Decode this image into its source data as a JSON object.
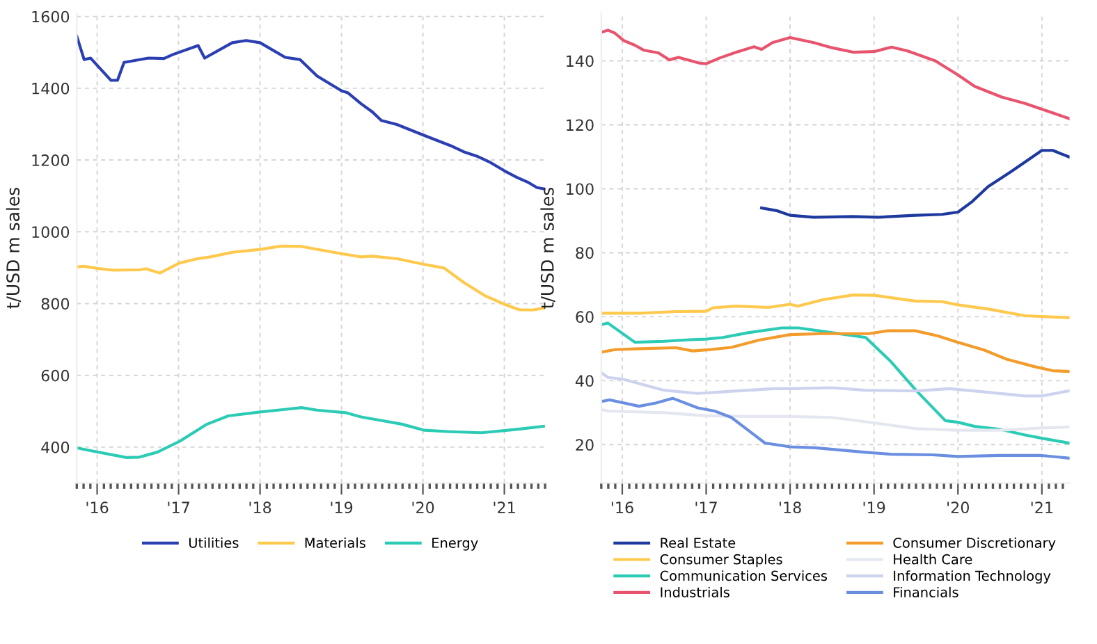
{
  "chart_data": [
    {
      "type": "line",
      "ylabel": "t/USD m sales",
      "xlim": [
        2015.75,
        2021.5
      ],
      "ylim": [
        300,
        1610
      ],
      "xticks": [
        {
          "value": 2016,
          "label": "'16"
        },
        {
          "value": 2017,
          "label": "'17"
        },
        {
          "value": 2018,
          "label": "'18"
        },
        {
          "value": 2019,
          "label": "'19"
        },
        {
          "value": 2020,
          "label": "'20"
        },
        {
          "value": 2021,
          "label": "'21"
        }
      ],
      "yticks": [
        400,
        600,
        800,
        1000,
        1200,
        1400,
        1600
      ],
      "grid": true,
      "legend": "bottom",
      "line_style": "solid",
      "marker": "none",
      "series": [
        {
          "name": "Utilities",
          "color": "#2b3fb3",
          "x": [
            2015.75,
            2015.84,
            2015.92,
            2016.17,
            2016.25,
            2016.33,
            2016.63,
            2016.82,
            2016.93,
            2017.24,
            2017.32,
            2017.66,
            2017.83,
            2018.0,
            2018.31,
            2018.49,
            2018.7,
            2019.0,
            2019.08,
            2019.24,
            2019.38,
            2019.49,
            2019.68,
            2020.0,
            2020.17,
            2020.34,
            2020.5,
            2020.66,
            2020.83,
            2021.0,
            2021.15,
            2021.29,
            2021.4,
            2021.48
          ],
          "values": [
            1545,
            1480,
            1484,
            1422,
            1422,
            1472,
            1484,
            1483,
            1494,
            1519,
            1484,
            1527,
            1533,
            1527,
            1486,
            1480,
            1434,
            1393,
            1387,
            1357,
            1334,
            1310,
            1299,
            1270,
            1255,
            1240,
            1223,
            1211,
            1193,
            1170,
            1152,
            1138,
            1123,
            1120
          ]
        },
        {
          "name": "Materials",
          "color": "#ffc94d",
          "x": [
            2015.75,
            2015.84,
            2016.0,
            2016.19,
            2016.52,
            2016.6,
            2016.77,
            2017.01,
            2017.23,
            2017.39,
            2017.66,
            2018.0,
            2018.26,
            2018.51,
            2019.0,
            2019.24,
            2019.38,
            2019.68,
            2020.0,
            2020.26,
            2020.5,
            2020.77,
            2021.0,
            2021.18,
            2021.34,
            2021.48
          ],
          "values": [
            902,
            904,
            898,
            893,
            894,
            897,
            885,
            913,
            925,
            930,
            943,
            951,
            960,
            959,
            939,
            930,
            932,
            925,
            910,
            899,
            859,
            821,
            798,
            783,
            782,
            787
          ]
        },
        {
          "name": "Energy",
          "color": "#2ccbb5",
          "x": [
            2015.75,
            2015.92,
            2016.36,
            2016.52,
            2016.74,
            2017.01,
            2017.34,
            2017.61,
            2018.0,
            2018.26,
            2018.51,
            2018.7,
            2019.05,
            2019.24,
            2019.52,
            2019.74,
            2020.02,
            2020.34,
            2020.72,
            2021.0,
            2021.21,
            2021.48
          ],
          "values": [
            398,
            390,
            371,
            372,
            386,
            416,
            463,
            487,
            498,
            504,
            510,
            503,
            496,
            484,
            473,
            464,
            447,
            443,
            440,
            446,
            451,
            458
          ]
        }
      ]
    },
    {
      "type": "line",
      "ylabel": "t/USD m sales",
      "xlim": [
        2015.75,
        2021.33
      ],
      "ylim": [
        8,
        155
      ],
      "xticks": [
        {
          "value": 2016,
          "label": "'16"
        },
        {
          "value": 2017,
          "label": "'17"
        },
        {
          "value": 2018,
          "label": "'18"
        },
        {
          "value": 2019,
          "label": "'19"
        },
        {
          "value": 2020,
          "label": "'20"
        },
        {
          "value": 2021,
          "label": "'21"
        }
      ],
      "yticks": [
        20,
        40,
        60,
        80,
        100,
        120,
        140
      ],
      "grid": true,
      "legend": "bottom",
      "line_style": "solid",
      "marker": "none",
      "series": [
        {
          "name": "Real Estate",
          "color": "#1e3a9e",
          "x": [
            2017.66,
            2017.85,
            2018.0,
            2018.28,
            2018.75,
            2019.05,
            2019.49,
            2019.81,
            2020.0,
            2020.17,
            2020.36,
            2020.63,
            2020.85,
            2021.0,
            2021.13,
            2021.32
          ],
          "values": [
            94,
            93.1,
            91.7,
            91.1,
            91.3,
            91.1,
            91.7,
            92,
            92.7,
            96,
            100.7,
            105.3,
            109.3,
            112,
            112,
            110
          ]
        },
        {
          "name": "Consumer Staples",
          "color": "#ffc94d",
          "x": [
            2015.75,
            2016.21,
            2016.64,
            2017.0,
            2017.08,
            2017.36,
            2017.74,
            2018.0,
            2018.09,
            2018.39,
            2018.75,
            2019.0,
            2019.49,
            2019.81,
            2020.0,
            2020.36,
            2020.8,
            2021.32
          ],
          "values": [
            61.1,
            61.1,
            61.6,
            61.7,
            62.8,
            63.3,
            62.9,
            63.9,
            63.3,
            65.3,
            66.8,
            66.7,
            64.9,
            64.7,
            63.7,
            62.4,
            60.3,
            59.7
          ]
        },
        {
          "name": "Communication Services",
          "color": "#2ccbb5",
          "x": [
            2015.75,
            2015.83,
            2016.15,
            2016.5,
            2016.8,
            2017.0,
            2017.2,
            2017.5,
            2017.9,
            2018.1,
            2018.5,
            2018.9,
            2019.2,
            2019.5,
            2019.85,
            2020.0,
            2020.2,
            2020.5,
            2020.8,
            2021.0,
            2021.32
          ],
          "values": [
            57.5,
            58,
            52,
            52.3,
            52.8,
            53,
            53.5,
            55,
            56.5,
            56.5,
            55,
            53.5,
            46,
            37,
            27.5,
            27,
            25.7,
            24.8,
            23,
            22,
            20.5
          ]
        },
        {
          "name": "Industrials",
          "color": "#e8546e",
          "x": [
            2015.75,
            2015.83,
            2015.91,
            2016.02,
            2016.15,
            2016.26,
            2016.43,
            2016.56,
            2016.67,
            2016.92,
            2017.0,
            2017.16,
            2017.36,
            2017.57,
            2017.66,
            2017.79,
            2018.0,
            2018.28,
            2018.5,
            2018.75,
            2019.0,
            2019.21,
            2019.4,
            2019.73,
            2020.0,
            2020.2,
            2020.52,
            2020.8,
            2021.0,
            2021.32
          ],
          "values": [
            148.9,
            149.6,
            148.7,
            146.3,
            144.9,
            143.3,
            142.5,
            140.3,
            141.1,
            139.3,
            139.1,
            140.9,
            142.7,
            144.4,
            143.6,
            145.7,
            147.3,
            145.7,
            144.1,
            142.7,
            142.9,
            144.3,
            143.1,
            140,
            135.6,
            132,
            128.7,
            126.7,
            124.9,
            122
          ]
        },
        {
          "name": "Consumer Discretionary",
          "color": "#f39c2b",
          "x": [
            2015.75,
            2015.91,
            2016.21,
            2016.64,
            2016.84,
            2017.0,
            2017.3,
            2017.63,
            2018.0,
            2018.39,
            2018.94,
            2019.16,
            2019.49,
            2019.76,
            2020.0,
            2020.31,
            2020.58,
            2020.91,
            2021.13,
            2021.32
          ],
          "values": [
            48.9,
            49.7,
            50,
            50.3,
            49.3,
            49.6,
            50.4,
            52.7,
            54.4,
            54.7,
            54.7,
            55.6,
            55.6,
            54,
            52,
            49.6,
            46.7,
            44.4,
            43.1,
            42.9
          ]
        },
        {
          "name": "Health Care",
          "color": "#e4e7f0",
          "x": [
            2015.75,
            2015.83,
            2016.5,
            2017.0,
            2017.5,
            2018.0,
            2018.5,
            2019.0,
            2019.5,
            2020.0,
            2020.5,
            2021.0,
            2021.32
          ],
          "values": [
            31,
            30.5,
            30,
            29,
            28.8,
            28.8,
            28.5,
            26.8,
            25,
            24.5,
            24.5,
            25.2,
            25.5
          ]
        },
        {
          "name": "Information Technology",
          "color": "#cdd3ee",
          "x": [
            2015.75,
            2015.83,
            2016.0,
            2016.5,
            2016.9,
            2017.2,
            2017.8,
            2018.0,
            2018.5,
            2018.9,
            2019.5,
            2019.9,
            2020.3,
            2020.8,
            2021.0,
            2021.32
          ],
          "values": [
            42.5,
            41,
            40.5,
            37,
            36,
            36.5,
            37.5,
            37.5,
            37.8,
            37,
            36.8,
            37.5,
            36.5,
            35.2,
            35.2,
            36.8
          ]
        },
        {
          "name": "Financials",
          "color": "#6b8fe0",
          "x": [
            2015.75,
            2015.85,
            2016.2,
            2016.4,
            2016.6,
            2016.9,
            2017.1,
            2017.3,
            2017.5,
            2017.7,
            2018.0,
            2018.3,
            2018.9,
            2019.2,
            2019.7,
            2020.0,
            2020.5,
            2021.0,
            2021.32
          ],
          "values": [
            33.5,
            34,
            32,
            33,
            34.5,
            31.5,
            30.5,
            28.5,
            24.5,
            20.5,
            19.3,
            19,
            17.6,
            17,
            16.8,
            16.3,
            16.6,
            16.6,
            15.8
          ]
        }
      ]
    }
  ]
}
